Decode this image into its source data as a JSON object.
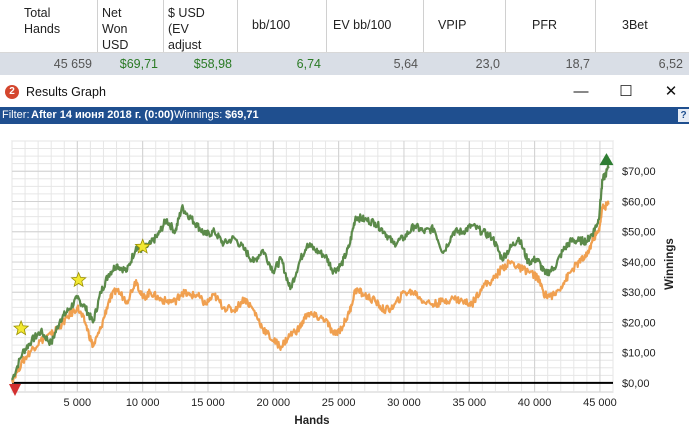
{
  "stats_table": {
    "columns": [
      {
        "header": "Total\nHands",
        "value": "45 659",
        "color": "#555555"
      },
      {
        "header": "Net\nWon\nUSD",
        "value": "$69,71",
        "color": "#2a7a24"
      },
      {
        "header": "$ USD\n(EV\nadjust",
        "value": "$58,98",
        "color": "#2a7a24"
      },
      {
        "header": "bb/100",
        "value": "6,74",
        "color": "#2a7a24"
      },
      {
        "header": "EV bb/100",
        "value": "5,64",
        "color": "#555555"
      },
      {
        "header": "VPIP",
        "value": "23,0",
        "color": "#555555"
      },
      {
        "header": "PFR",
        "value": "18,7",
        "color": "#555555"
      },
      {
        "header": "3Bet",
        "value": "6,52",
        "color": "#555555"
      }
    ]
  },
  "window": {
    "title": "Results Graph",
    "app_icon_glyph": "2",
    "minimize_glyph": "—",
    "maximize_glyph": "☐",
    "close_glyph": "✕"
  },
  "filter_bar": {
    "filter_label": "Filter:",
    "filter_value": "After 14 июня 2018 г. (0:00)",
    "winnings_label": "Winnings:",
    "winnings_value": "$69,71",
    "help_glyph": "?"
  },
  "chart_data": {
    "type": "line",
    "xlabel": "Hands",
    "ylabel": "Winnings",
    "xlim": [
      0,
      46000
    ],
    "ylim": [
      -3,
      80
    ],
    "x_ticks": [
      5000,
      10000,
      15000,
      20000,
      25000,
      30000,
      35000,
      40000,
      45000
    ],
    "x_tick_labels": [
      "5 000",
      "10 000",
      "15 000",
      "20 000",
      "25 000",
      "30 000",
      "35 000",
      "40 000",
      "45 000"
    ],
    "y_ticks": [
      0,
      10,
      20,
      30,
      40,
      50,
      60,
      70
    ],
    "y_tick_labels": [
      "$0,00",
      "$10,00",
      "$20,00",
      "$30,00",
      "$40,00",
      "$50,00",
      "$60,00",
      "$70,00"
    ],
    "grid": true,
    "colors": {
      "net_won": "#5b8a4a",
      "ev_adjusted": "#f0a050",
      "zero_line": "#000000",
      "star": "#f2e832",
      "max_marker": "#2e7d32",
      "min_marker": "#d32f2f"
    },
    "series": [
      {
        "name": "Net Won",
        "x": [
          0,
          800,
          1500,
          2200,
          3000,
          3700,
          4300,
          5000,
          5600,
          6200,
          6800,
          7400,
          8000,
          8800,
          9500,
          10000,
          10600,
          11200,
          11800,
          12500,
          13000,
          13600,
          14200,
          14800,
          15500,
          16200,
          17000,
          17800,
          18500,
          19200,
          20000,
          20600,
          21300,
          22000,
          22600,
          23200,
          24000,
          24600,
          25200,
          25800,
          26300,
          27000,
          27800,
          28500,
          29200,
          30000,
          30800,
          31500,
          32300,
          33000,
          33800,
          34500,
          35200,
          36000,
          36800,
          37500,
          38200,
          38800,
          39500,
          40200,
          40800,
          41500,
          42200,
          42800,
          43400,
          44000,
          44500,
          44900,
          45200,
          45659
        ],
        "y": [
          1,
          10,
          14,
          17,
          13,
          21,
          24,
          28,
          25,
          20,
          30,
          36,
          39,
          37,
          45,
          44,
          46,
          49,
          54,
          50,
          58,
          55,
          52,
          49,
          50,
          46,
          48,
          44,
          40,
          44,
          37,
          41,
          31,
          40,
          46,
          44,
          42,
          37,
          39,
          45,
          55,
          54,
          53,
          50,
          46,
          48,
          52,
          50,
          51,
          43,
          50,
          50,
          52,
          50,
          48,
          41,
          45,
          48,
          40,
          41,
          36,
          38,
          44,
          47,
          47,
          47,
          50,
          54,
          67,
          71
        ]
      },
      {
        "name": "EV adjusted",
        "x": [
          0,
          800,
          1500,
          2200,
          3000,
          3700,
          4300,
          5000,
          5600,
          6200,
          6800,
          7400,
          8000,
          8800,
          9500,
          10000,
          10600,
          11200,
          11800,
          12500,
          13000,
          13600,
          14200,
          14800,
          15500,
          16200,
          17000,
          17800,
          18500,
          19200,
          20000,
          20600,
          21300,
          22000,
          22600,
          23200,
          24000,
          24600,
          25200,
          25800,
          26300,
          27000,
          27800,
          28500,
          29200,
          30000,
          30800,
          31500,
          32300,
          33000,
          33800,
          34500,
          35200,
          36000,
          36800,
          37500,
          38200,
          38800,
          39500,
          40200,
          40800,
          41500,
          42200,
          42800,
          43400,
          44000,
          44500,
          44900,
          45200,
          45659
        ],
        "y": [
          1,
          7,
          11,
          14,
          16,
          19,
          22,
          25,
          20,
          12,
          18,
          27,
          31,
          27,
          34,
          28,
          30,
          28,
          27,
          27,
          30,
          29,
          29,
          26,
          29,
          25,
          24,
          28,
          24,
          18,
          14,
          12,
          16,
          18,
          23,
          22,
          21,
          16,
          18,
          23,
          31,
          29,
          27,
          24,
          25,
          30,
          30,
          27,
          26,
          27,
          28,
          27,
          26,
          32,
          34,
          38,
          40,
          38,
          37,
          35,
          29,
          29,
          33,
          37,
          40,
          42,
          48,
          50,
          58,
          59
        ]
      }
    ],
    "stars": [
      {
        "x": 700,
        "y": 18
      },
      {
        "x": 5100,
        "y": 34
      },
      {
        "x": 10000,
        "y": 45
      }
    ],
    "max_point": {
      "x": 45500,
      "y": 74
    },
    "min_point": {
      "x": 0,
      "y": -1
    }
  }
}
